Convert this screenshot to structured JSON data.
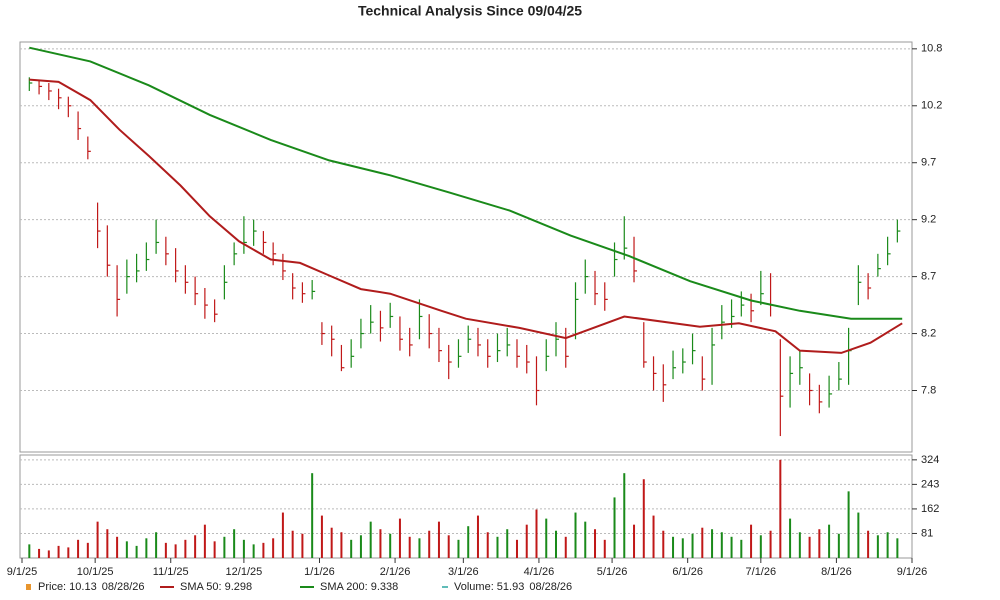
{
  "chart_data": {
    "type": "ohlc",
    "title": "Technical Analysis Since 09/04/25",
    "xlim": [
      0,
      365
    ],
    "xticks": [
      {
        "value": 0,
        "label": "9/1/25"
      },
      {
        "value": 30,
        "label": "10/1/25"
      },
      {
        "value": 61,
        "label": "11/1/25"
      },
      {
        "value": 91,
        "label": "12/1/25"
      },
      {
        "value": 122,
        "label": "1/1/26"
      },
      {
        "value": 153,
        "label": "2/1/26"
      },
      {
        "value": 181,
        "label": "3/1/26"
      },
      {
        "value": 212,
        "label": "4/1/26"
      },
      {
        "value": 242,
        "label": "5/1/26"
      },
      {
        "value": 273,
        "label": "6/1/26"
      },
      {
        "value": 303,
        "label": "7/1/26"
      },
      {
        "value": 334,
        "label": "8/1/26"
      },
      {
        "value": 365,
        "label": "9/1/26"
      }
    ],
    "ylim": [
      7.21,
      10.81
    ],
    "yticks": [
      {
        "value": 7.75,
        "label": "7.8"
      },
      {
        "value": 8.25,
        "label": "8.2"
      },
      {
        "value": 8.75,
        "label": "8.7"
      },
      {
        "value": 9.25,
        "label": "9.2"
      },
      {
        "value": 9.75,
        "label": "9.7"
      },
      {
        "value": 10.25,
        "label": "10.2"
      },
      {
        "value": 10.75,
        "label": "10.8"
      }
    ],
    "grid": true,
    "up_color": "#1a8a1a",
    "down_color": "#c01818",
    "x": [
      3,
      7,
      11,
      15,
      19,
      23,
      27,
      31,
      35,
      39,
      43,
      47,
      51,
      55,
      59,
      63,
      67,
      71,
      75,
      79,
      83,
      87,
      91,
      95,
      99,
      103,
      107,
      111,
      115,
      119,
      123,
      127,
      131,
      135,
      139,
      143,
      147,
      151,
      155,
      159,
      163,
      167,
      171,
      175,
      179,
      183,
      187,
      191,
      195,
      199,
      203,
      207,
      211,
      215,
      219,
      223,
      227,
      231,
      235,
      239,
      243,
      247,
      251,
      255,
      259,
      263,
      267,
      271,
      275,
      279,
      283,
      287,
      291,
      295,
      299,
      303,
      307,
      311,
      315,
      319,
      323,
      327,
      331,
      335,
      339,
      343,
      347,
      351,
      355,
      359
    ],
    "high": [
      10.5,
      10.48,
      10.45,
      10.4,
      10.33,
      10.2,
      9.98,
      9.4,
      9.2,
      8.85,
      8.9,
      8.95,
      9.05,
      9.25,
      9.1,
      9.0,
      8.85,
      8.75,
      8.65,
      8.55,
      8.85,
      9.05,
      9.28,
      9.25,
      9.15,
      9.05,
      8.95,
      8.78,
      8.7,
      8.72,
      8.35,
      8.32,
      8.15,
      8.2,
      8.38,
      8.5,
      8.45,
      8.52,
      8.4,
      8.3,
      8.55,
      8.42,
      8.3,
      8.15,
      8.2,
      8.32,
      8.3,
      8.2,
      8.25,
      8.3,
      8.2,
      8.15,
      8.05,
      8.2,
      8.35,
      8.3,
      8.7,
      8.9,
      8.8,
      8.7,
      9.05,
      9.28,
      9.1,
      8.35,
      8.05,
      7.98,
      8.1,
      8.12,
      8.25,
      8.05,
      8.3,
      8.5,
      8.55,
      8.62,
      8.6,
      8.8,
      8.78,
      8.2,
      8.05,
      8.1,
      7.9,
      7.8,
      7.88,
      8.0,
      8.3,
      8.85,
      8.78,
      8.95,
      9.1,
      9.25
    ],
    "low": [
      10.38,
      10.35,
      10.3,
      10.22,
      10.15,
      9.95,
      9.78,
      9.0,
      8.75,
      8.4,
      8.6,
      8.7,
      8.8,
      8.95,
      8.85,
      8.7,
      8.6,
      8.5,
      8.38,
      8.35,
      8.55,
      8.85,
      8.95,
      9.02,
      8.95,
      8.85,
      8.72,
      8.55,
      8.52,
      8.55,
      8.15,
      8.05,
      7.92,
      7.95,
      8.12,
      8.25,
      8.18,
      8.3,
      8.1,
      8.05,
      8.2,
      8.12,
      8.0,
      7.85,
      7.95,
      8.08,
      8.05,
      7.95,
      8.0,
      8.05,
      7.95,
      7.9,
      7.62,
      7.92,
      8.05,
      7.95,
      8.2,
      8.6,
      8.5,
      8.45,
      8.75,
      8.9,
      8.7,
      7.95,
      7.75,
      7.65,
      7.85,
      7.9,
      7.98,
      7.75,
      7.8,
      8.2,
      8.3,
      8.4,
      8.35,
      8.5,
      8.4,
      7.35,
      7.6,
      7.8,
      7.62,
      7.55,
      7.6,
      7.75,
      7.8,
      8.5,
      8.55,
      8.75,
      8.85,
      9.05
    ],
    "close": [
      10.45,
      10.42,
      10.38,
      10.32,
      10.25,
      10.05,
      9.85,
      9.15,
      8.85,
      8.55,
      8.75,
      8.8,
      8.9,
      9.05,
      8.95,
      8.8,
      8.7,
      8.6,
      8.5,
      8.42,
      8.7,
      8.95,
      9.05,
      9.15,
      9.05,
      8.95,
      8.8,
      8.65,
      8.6,
      8.62,
      8.25,
      8.2,
      7.95,
      8.05,
      8.25,
      8.35,
      8.3,
      8.4,
      8.2,
      8.15,
      8.4,
      8.25,
      8.1,
      8.0,
      8.05,
      8.2,
      8.15,
      8.05,
      8.1,
      8.15,
      8.05,
      8.0,
      7.75,
      8.05,
      8.2,
      8.05,
      8.55,
      8.75,
      8.6,
      8.55,
      8.9,
      9.0,
      8.8,
      8.0,
      7.9,
      7.8,
      7.95,
      8.0,
      8.1,
      7.85,
      8.15,
      8.35,
      8.4,
      8.5,
      8.45,
      8.6,
      8.5,
      7.7,
      7.9,
      7.95,
      7.75,
      7.65,
      7.72,
      7.85,
      8.1,
      8.7,
      8.65,
      8.82,
      8.95,
      9.15
    ],
    "volume": {
      "values": [
        45,
        30,
        25,
        40,
        35,
        60,
        50,
        120,
        95,
        70,
        55,
        40,
        65,
        85,
        50,
        45,
        60,
        75,
        110,
        55,
        70,
        95,
        60,
        45,
        50,
        65,
        150,
        90,
        80,
        280,
        140,
        100,
        85,
        60,
        75,
        120,
        95,
        80,
        130,
        70,
        65,
        90,
        120,
        75,
        60,
        105,
        140,
        85,
        70,
        95,
        60,
        110,
        160,
        130,
        90,
        70,
        150,
        120,
        95,
        60,
        200,
        280,
        110,
        260,
        140,
        90,
        70,
        65,
        80,
        100,
        95,
        85,
        70,
        60,
        110,
        75,
        90,
        324,
        130,
        85,
        70,
        95,
        110,
        80,
        220,
        150,
        90,
        75,
        85,
        65
      ],
      "ylim": [
        0,
        340
      ],
      "yticks": [
        81,
        162,
        243,
        324
      ]
    },
    "series": [
      {
        "color": "#b01c1c",
        "x": [
          3,
          15,
          28,
          40,
          52,
          65,
          77,
          89,
          102,
          114,
          126,
          139,
          151,
          172,
          182,
          204,
          223,
          247,
          278,
          294,
          309,
          319,
          336,
          348,
          361
        ],
        "values": [
          10.48,
          10.46,
          10.3,
          10.04,
          9.81,
          9.55,
          9.28,
          9.06,
          8.9,
          8.87,
          8.76,
          8.64,
          8.6,
          8.45,
          8.38,
          8.3,
          8.21,
          8.4,
          8.31,
          8.34,
          8.27,
          8.1,
          8.08,
          8.17,
          8.34
        ]
      },
      {
        "color": "#1a8a1a",
        "x": [
          3,
          28,
          52,
          77,
          102,
          126,
          151,
          175,
          200,
          225,
          249,
          274,
          299,
          319,
          340,
          361
        ],
        "values": [
          10.76,
          10.64,
          10.43,
          10.17,
          9.95,
          9.77,
          9.64,
          9.49,
          9.33,
          9.11,
          8.93,
          8.71,
          8.54,
          8.45,
          8.38,
          8.38
        ]
      }
    ],
    "legend": [
      {
        "label": "Price: 10.13",
        "date": "08/28/26",
        "color": "#e8952e"
      },
      {
        "label": "SMA 50: 9.298",
        "color": "#b01c1c"
      },
      {
        "label": "SMA 200: 9.338",
        "color": "#1a8a1a"
      },
      {
        "label": "Volume: 51.93",
        "date": "08/28/26",
        "color": "#2aa5a0"
      }
    ]
  }
}
